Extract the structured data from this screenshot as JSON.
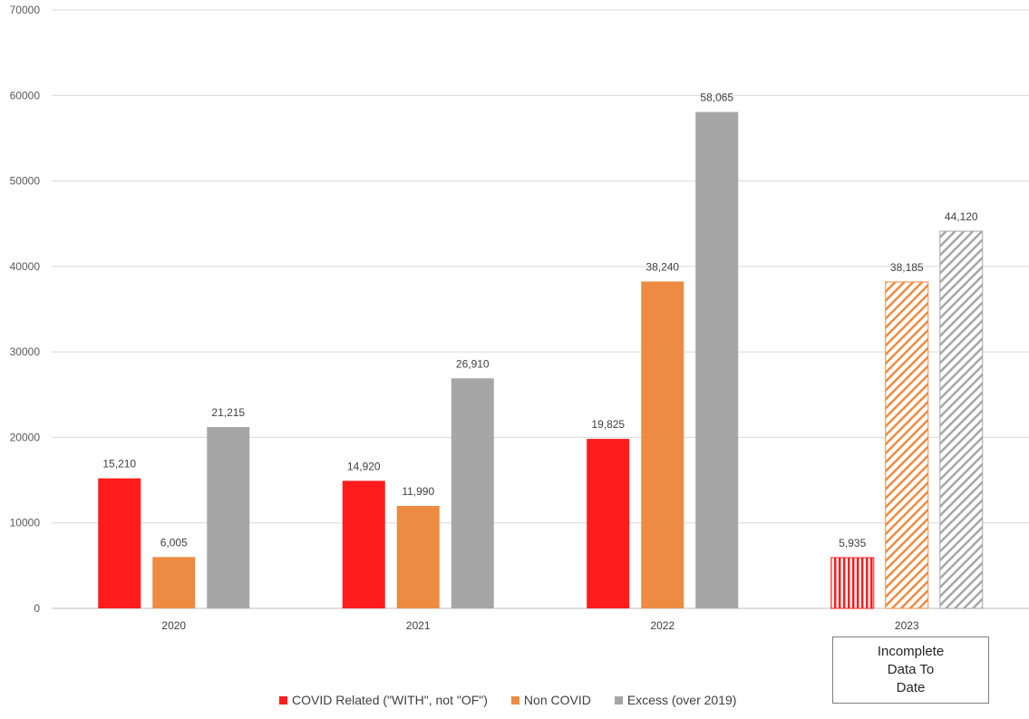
{
  "chart_data": {
    "type": "bar",
    "categories": [
      "2020",
      "2021",
      "2022",
      "2023"
    ],
    "series": [
      {
        "name": "COVID Related (\"WITH\", not \"OF\")",
        "values": [
          15210,
          14920,
          19825,
          5935
        ],
        "color": "#ff1c1c"
      },
      {
        "name": "Non COVID",
        "values": [
          6005,
          11990,
          38240,
          38185
        ],
        "color": "#ed8b42"
      },
      {
        "name": "Excess (over 2019)",
        "values": [
          21215,
          26910,
          58065,
          44120
        ],
        "color": "#a6a6a6"
      }
    ],
    "data_labels": [
      [
        "15,210",
        "14,920",
        "19,825",
        "5,935"
      ],
      [
        "6,005",
        "11,990",
        "38,240",
        "38,185"
      ],
      [
        "21,215",
        "26,910",
        "58,065",
        "44,120"
      ]
    ],
    "y_ticks": [
      "0",
      "10000",
      "20000",
      "30000",
      "40000",
      "50000",
      "60000",
      "70000"
    ],
    "ylim": [
      0,
      70000
    ],
    "grid": true,
    "legend_position": "bottom",
    "hatched_category": "2023",
    "annotation": "Incomplete\nData To\nDate"
  }
}
